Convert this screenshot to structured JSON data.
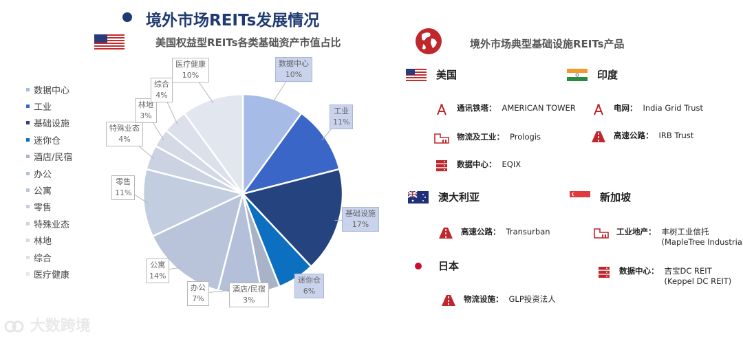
{
  "title": "境外市场REITs发展情况",
  "left_subtitle": "美国权益型REITs各类基础资产市值占比",
  "right_subtitle": "境外市场典型基础设施REITs产品",
  "chart_data": {
    "type": "pie",
    "title": "美国权益型REITs各类基础资产市值占比",
    "legend_position": "left",
    "slices": [
      {
        "name": "数据中心",
        "value": 10,
        "label": "10%",
        "color": "#a6bbe6"
      },
      {
        "name": "工业",
        "value": 11,
        "label": "11%",
        "color": "#3a66c7"
      },
      {
        "name": "基础设施",
        "value": 17,
        "label": "17%",
        "color": "#24437f"
      },
      {
        "name": "迷你仓",
        "value": 6,
        "label": "6%",
        "color": "#0d6fc0"
      },
      {
        "name": "酒店/民宿",
        "value": 3,
        "label": "3%",
        "color": "#a9b3c7"
      },
      {
        "name": "办公",
        "value": 7,
        "label": "7%",
        "color": "#b4bfd9"
      },
      {
        "name": "公寓",
        "value": 14,
        "label": "14%",
        "color": "#b9c4da"
      },
      {
        "name": "零售",
        "value": 11,
        "label": "11%",
        "color": "#c3cde0"
      },
      {
        "name": "特殊业态",
        "value": 4,
        "label": "4%",
        "color": "#cbd3e2"
      },
      {
        "name": "林地",
        "value": 3,
        "label": "3%",
        "color": "#d3dae6"
      },
      {
        "name": "综合",
        "value": 4,
        "label": "4%",
        "color": "#dbe0ea"
      },
      {
        "name": "医疗健康",
        "value": 10,
        "label": "10%",
        "color": "#e2e6ef"
      }
    ]
  },
  "legend_colors": [
    "#a6bbe6",
    "#3a66c7",
    "#24437f",
    "#0d6fc0",
    "#a9b3c7",
    "#b4bfd9",
    "#b9c4da",
    "#c3cde0",
    "#cbd3e2",
    "#d3dae6",
    "#dbe0ea",
    "#e2e6ef"
  ],
  "products": {
    "us": {
      "country": "美国",
      "items": [
        {
          "icon": "tower-icon",
          "key": "通讯铁塔：",
          "value": "AMERICAN TOWER"
        },
        {
          "icon": "warehouse-icon",
          "key": "物流及工业：",
          "value": "Prologis"
        },
        {
          "icon": "server-icon",
          "key": "数据中心：",
          "value": "EQIX"
        }
      ]
    },
    "india": {
      "country": "印度",
      "items": [
        {
          "icon": "tower-icon",
          "key": "电网：",
          "value": "India Grid Trust"
        },
        {
          "icon": "highway-icon",
          "key": "高速公路：",
          "value": "IRB Trust"
        }
      ]
    },
    "australia": {
      "country": "澳大利亚",
      "items": [
        {
          "icon": "highway-icon",
          "key": "高速公路：",
          "value": "Transurban"
        }
      ]
    },
    "singapore": {
      "country": "新加坡",
      "items": [
        {
          "icon": "warehouse-icon",
          "key": "工业地产：",
          "value": "丰树工业信托",
          "value2": "(MapleTree Industrial Trust)"
        },
        {
          "icon": "server-icon",
          "key": "数据中心：",
          "value": "吉宝DC REIT",
          "value2": "(Keppel DC REIT)"
        }
      ]
    },
    "japan": {
      "country": "日本",
      "items": [
        {
          "icon": "highway-icon",
          "key": "物流设施：",
          "value": "GLP投资法人"
        }
      ]
    }
  },
  "watermark": "大数跨境",
  "accent_color": "#1f3a73",
  "icon_red": "#c0272d"
}
